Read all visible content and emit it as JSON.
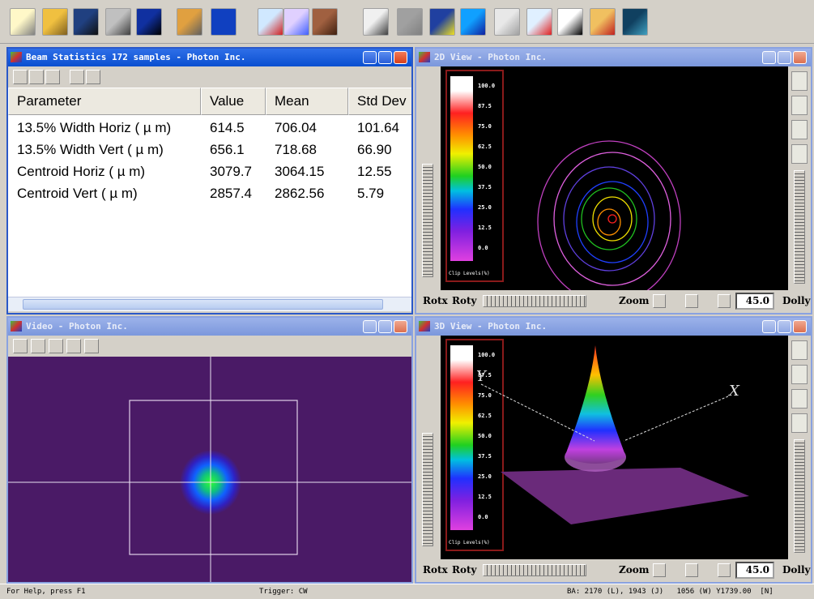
{
  "windows": [
    {
      "title": "Beam Statistics 172 samples - Photon Inc.",
      "table": {
        "header": [
          "Parameter",
          "Value",
          "Mean",
          "Std Dev"
        ],
        "rows": [
          [
            "13.5% Width Horiz ( µ m)",
            "614.5",
            "706.04",
            "101.64"
          ],
          [
            "13.5% Width Vert ( µ m)",
            "656.1",
            "718.68",
            "66.90"
          ],
          [
            "Centroid Horiz ( µ m)",
            "3079.7",
            "3064.15",
            "12.55"
          ],
          [
            "Centroid Vert ( µ m)",
            "2857.4",
            "2862.56",
            "5.79"
          ]
        ]
      }
    },
    {
      "title": "2D View - Photon Inc.",
      "colorbar": {
        "labels": [
          "100.0",
          "87.5",
          "75.0",
          "62.5",
          "50.0",
          "37.5",
          "25.0",
          "12.5",
          "0.0"
        ],
        "caption": "Clip Levels(%)"
      },
      "controls": {
        "rotx": "Rotx",
        "roty": "Roty",
        "zoom": "Zoom",
        "value": "45.0",
        "dolly": "Dolly"
      }
    },
    {
      "title": "Video - Photon Inc."
    },
    {
      "title": "3D View - Photon Inc.",
      "colorbar": {
        "labels": [
          "100.0",
          "87.5",
          "75.0",
          "62.5",
          "50.0",
          "37.5",
          "25.0",
          "12.5",
          "0.0"
        ],
        "caption": "Clip Levels(%)"
      },
      "axes": [
        "Y",
        "X"
      ],
      "controls": {
        "rotx": "Rotx",
        "roty": "Roty",
        "zoom": "Zoom",
        "value": "45.0",
        "dolly": "Dolly"
      }
    }
  ],
  "status_bar": [
    "For Help, press F1",
    "Trigger: CW",
    "BA: 2170 (L), 1943 (J)   1056 (W) Y1739.00  [N]"
  ]
}
